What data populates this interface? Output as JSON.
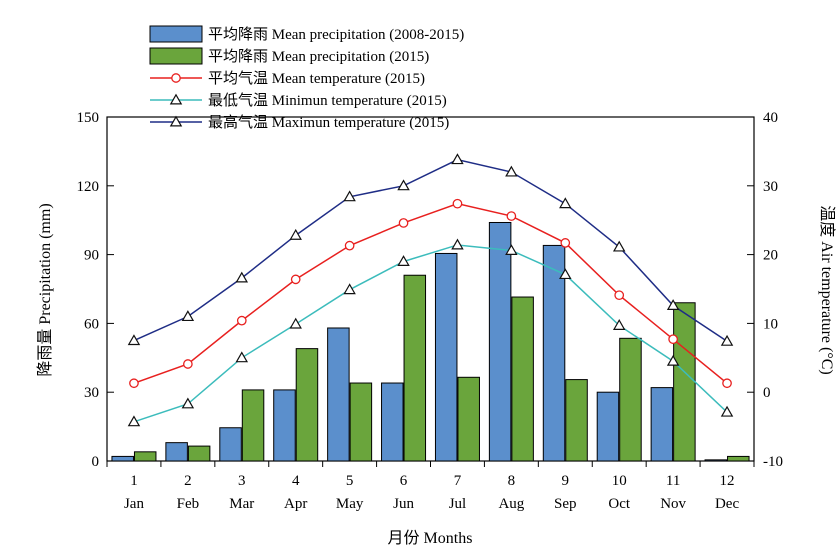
{
  "chart_data": {
    "type": "bar",
    "xlabel": "月份 Months",
    "ylabel_left": "降雨量 Precipitation (mm)",
    "ylabel_right": "温度 Air temperature (°C)",
    "ylim_left": [
      0,
      150
    ],
    "yticks_left": [
      "0",
      "30",
      "60",
      "90",
      "120",
      "150"
    ],
    "ylim_right": [
      -10,
      40
    ],
    "yticks_right": [
      "-10",
      "0",
      "10",
      "20",
      "30",
      "40"
    ],
    "grid": false,
    "legend_position": "top-left",
    "month_numbers": [
      "1",
      "2",
      "3",
      "4",
      "5",
      "6",
      "7",
      "8",
      "9",
      "10",
      "11",
      "12"
    ],
    "categories": [
      "Jan",
      "Feb",
      "Mar",
      "Apr",
      "May",
      "Jun",
      "Jul",
      "Aug",
      "Sep",
      "Oct",
      "Nov",
      "Dec"
    ],
    "series": [
      {
        "name": "平均降雨 Mean precipitation (2008-2015)",
        "kind": "bar",
        "axis": "left",
        "color": "#5b8fcc",
        "values": [
          2,
          8,
          14.5,
          31,
          58,
          34,
          90.5,
          104,
          94,
          30,
          32,
          0.5
        ]
      },
      {
        "name": "平均降雨 Mean precipitation (2015)",
        "kind": "bar",
        "axis": "left",
        "color": "#6aa53c",
        "values": [
          4,
          6.5,
          31,
          49,
          34,
          81,
          36.5,
          71.5,
          35.5,
          53.5,
          69,
          2
        ]
      },
      {
        "name": "平均气温 Mean temperature (2015)",
        "kind": "line",
        "marker": "circle",
        "axis": "right",
        "color": "#e8201f",
        "values": [
          1.3,
          4.1,
          10.4,
          16.4,
          21.3,
          24.6,
          27.4,
          25.6,
          21.7,
          14.1,
          7.7,
          1.3
        ]
      },
      {
        "name": "最低气温 Minimun temperature (2015)",
        "kind": "line",
        "marker": "triangle",
        "axis": "right",
        "color": "#3cbcbc",
        "values": [
          -4.3,
          -1.7,
          5.0,
          9.9,
          14.9,
          19.0,
          21.4,
          20.6,
          17.1,
          9.7,
          4.5,
          -2.9
        ]
      },
      {
        "name": "最高气温 Maximun temperature (2015)",
        "kind": "line",
        "marker": "triangle",
        "axis": "right",
        "color": "#1f2d86",
        "values": [
          7.5,
          11.0,
          16.6,
          22.8,
          28.4,
          30.0,
          33.8,
          32.0,
          27.4,
          21.1,
          12.6,
          7.4
        ]
      }
    ]
  }
}
